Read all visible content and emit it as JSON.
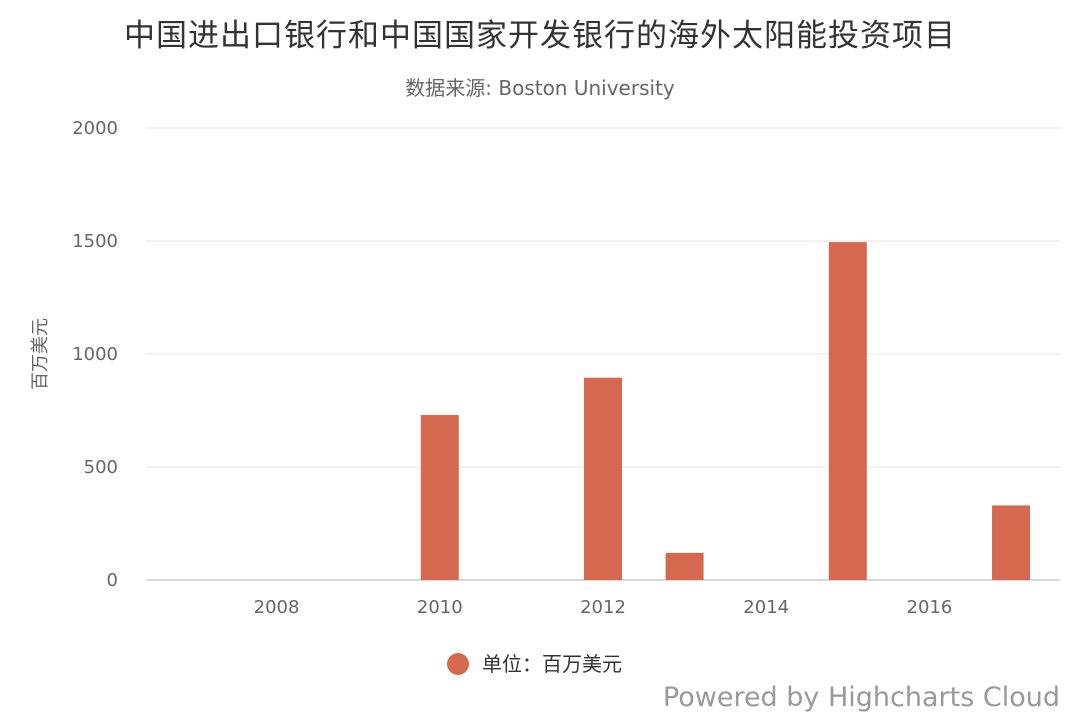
{
  "chart_data": {
    "type": "bar",
    "title": "中国进出口银行和中国国家开发银行的海外太阳能投资项目",
    "subtitle": "数据来源: Boston University",
    "ylabel": "百万美元",
    "xlabel": "",
    "ylim": [
      0,
      2000
    ],
    "yticks": [
      0,
      500,
      1000,
      1500,
      2000
    ],
    "xlim": [
      2006.4,
      2017.6
    ],
    "xticks": [
      2008,
      2010,
      2012,
      2014,
      2016
    ],
    "grid": true,
    "legend_position": "bottom-center",
    "series": [
      {
        "name": "单位：百万美元",
        "color": "#d4694f",
        "points": [
          {
            "x": 2010,
            "y": 730
          },
          {
            "x": 2012,
            "y": 895
          },
          {
            "x": 2013,
            "y": 120
          },
          {
            "x": 2015,
            "y": 1495
          },
          {
            "x": 2017,
            "y": 330
          }
        ]
      }
    ]
  },
  "credits": "Powered by Highcharts Cloud"
}
